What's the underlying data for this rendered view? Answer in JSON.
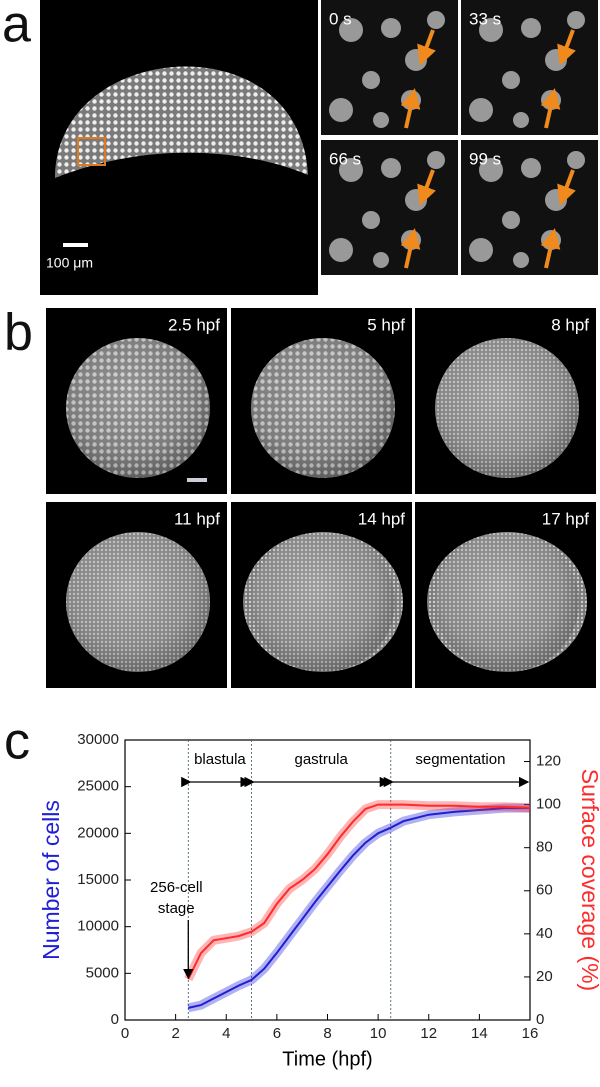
{
  "panel_a": {
    "label": "a",
    "scale_bar": "100 μm",
    "frames": [
      "0 s",
      "33 s",
      "66 s",
      "99 s"
    ]
  },
  "panel_b": {
    "label": "b",
    "frames": [
      "2.5 hpf",
      "5 hpf",
      "8 hpf",
      "11 hpf",
      "14 hpf",
      "17 hpf"
    ]
  },
  "panel_c": {
    "label": "c"
  },
  "chart_data": {
    "type": "line",
    "x": [
      2.5,
      3,
      3.5,
      4,
      4.5,
      5,
      5.5,
      6,
      6.5,
      7,
      7.5,
      8,
      8.5,
      9,
      9.5,
      10,
      10.5,
      11,
      12,
      13,
      14,
      15,
      16
    ],
    "series": [
      {
        "name": "Number of cells",
        "color": "#1f1fd6",
        "axis": "y",
        "values": [
          1300,
          1600,
          2300,
          3000,
          3700,
          4300,
          5500,
          7200,
          9000,
          10800,
          12600,
          14300,
          16000,
          17600,
          19000,
          20000,
          20600,
          21300,
          22000,
          22300,
          22500,
          22700,
          22700
        ]
      },
      {
        "name": "Surface coverage (%)",
        "color": "#ff2a2a",
        "axis": "y2",
        "values": [
          19,
          31,
          37,
          38,
          39,
          41,
          45,
          54,
          61,
          65,
          70,
          77,
          85,
          92,
          98,
          100,
          100,
          100,
          99.5,
          99.5,
          99,
          99,
          98.5
        ]
      }
    ],
    "xlabel": "Time (hpf)",
    "xlim": [
      0,
      16
    ],
    "xticks": [
      0,
      2,
      4,
      6,
      8,
      10,
      12,
      14,
      16
    ],
    "ylim": [
      0,
      30000
    ],
    "yticks": [
      0,
      5000,
      10000,
      15000,
      20000,
      25000,
      30000
    ],
    "y2lim": [
      0,
      130
    ],
    "y2ticks": [
      0,
      20,
      40,
      60,
      80,
      100,
      120
    ],
    "phases": [
      {
        "label": "blastula",
        "start": 2.5,
        "end": 5
      },
      {
        "label": "gastrula",
        "start": 5,
        "end": 10.5
      },
      {
        "label": "segmentation",
        "start": 10.5,
        "end": 16
      }
    ],
    "annotation": [
      "256-cell",
      "stage"
    ]
  }
}
